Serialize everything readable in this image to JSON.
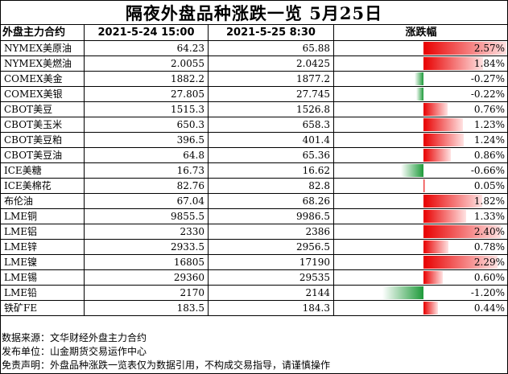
{
  "title": "隔夜外盘品种涨跌一览  5月25日",
  "chart_data": {
    "type": "table",
    "columns": [
      "外盘主力合约",
      "2021-5-24 15:00",
      "2021-5-25 8:30",
      "涨跌幅"
    ],
    "rows": [
      {
        "name": "NYMEX美原油",
        "prev": "64.23",
        "curr": "65.88",
        "change": 2.57,
        "change_label": "2.57%"
      },
      {
        "name": "NYMEX美燃油",
        "prev": "2.0055",
        "curr": "2.0425",
        "change": 1.84,
        "change_label": "1.84%"
      },
      {
        "name": "COMEX美金",
        "prev": "1882.2",
        "curr": "1877.2",
        "change": -0.27,
        "change_label": "-0.27%"
      },
      {
        "name": "COMEX美银",
        "prev": "27.805",
        "curr": "27.745",
        "change": -0.22,
        "change_label": "-0.22%"
      },
      {
        "name": "CBOT美豆",
        "prev": "1515.3",
        "curr": "1526.8",
        "change": 0.76,
        "change_label": "0.76%"
      },
      {
        "name": "CBOT美玉米",
        "prev": "650.3",
        "curr": "658.3",
        "change": 1.23,
        "change_label": "1.23%"
      },
      {
        "name": "CBOT美豆粕",
        "prev": "396.5",
        "curr": "401.4",
        "change": 1.24,
        "change_label": "1.24%"
      },
      {
        "name": "CBOT美豆油",
        "prev": "64.8",
        "curr": "65.36",
        "change": 0.86,
        "change_label": "0.86%"
      },
      {
        "name": "ICE美糖",
        "prev": "16.73",
        "curr": "16.62",
        "change": -0.66,
        "change_label": "-0.66%"
      },
      {
        "name": "ICE美棉花",
        "prev": "82.76",
        "curr": "82.8",
        "change": 0.05,
        "change_label": "0.05%"
      },
      {
        "name": "布伦油",
        "prev": "67.04",
        "curr": "68.26",
        "change": 1.82,
        "change_label": "1.82%"
      },
      {
        "name": "LME铜",
        "prev": "9855.5",
        "curr": "9986.5",
        "change": 1.33,
        "change_label": "1.33%"
      },
      {
        "name": "LME铝",
        "prev": "2330",
        "curr": "2386",
        "change": 2.4,
        "change_label": "2.40%"
      },
      {
        "name": "LME锌",
        "prev": "2933.5",
        "curr": "2956.5",
        "change": 0.78,
        "change_label": "0.78%"
      },
      {
        "name": "LME镍",
        "prev": "16805",
        "curr": "17190",
        "change": 2.29,
        "change_label": "2.29%"
      },
      {
        "name": "LME锡",
        "prev": "29360",
        "curr": "29535",
        "change": 0.6,
        "change_label": "0.60%"
      },
      {
        "name": "LME铅",
        "prev": "2170",
        "curr": "2144",
        "change": -1.2,
        "change_label": "-1.20%"
      },
      {
        "name": "铁矿FE",
        "prev": "183.5",
        "curr": "184.3",
        "change": 0.44,
        "change_label": "0.44%"
      }
    ],
    "bar_max_abs": 2.57,
    "colors": {
      "positive": "#e80000",
      "negative": "#1e9a3a"
    }
  },
  "notes": {
    "source": "数据来源：文华财经外盘主力合约",
    "publisher": "发布单位：山金期货交易运作中心",
    "disclaimer": "免责声明：外盘品种涨跌一览表仅为数据引用，不构成交易指导，请谨慎操作"
  }
}
